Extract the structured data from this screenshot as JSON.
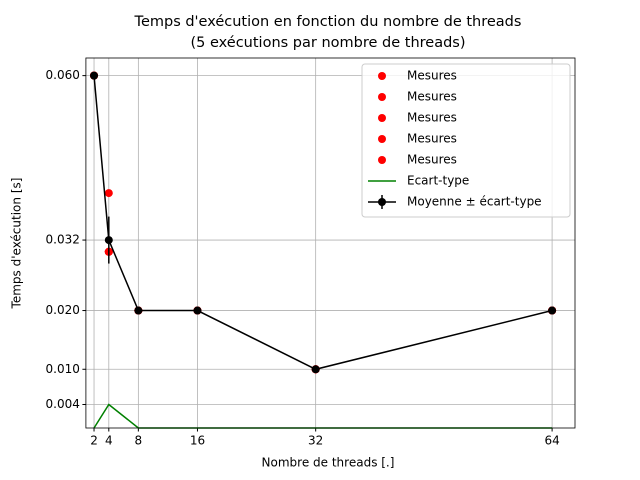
{
  "chart_data": {
    "type": "line",
    "title": "Temps d'exécution en fonction du nombre de threads",
    "subtitle": "(5 exécutions par nombre de threads)",
    "x_label": "Nombre de threads [.]",
    "y_label": "Temps d'exécution [s]",
    "x": [
      2,
      4,
      8,
      16,
      32,
      64
    ],
    "xlim": [
      0.9,
      67.1
    ],
    "ylim": [
      0,
      0.063
    ],
    "xticks": [
      2,
      4,
      8,
      16,
      32,
      64
    ],
    "yticks": [
      {
        "value": 0.004,
        "label": "0.004"
      },
      {
        "value": 0.01,
        "label": "0.010"
      },
      {
        "value": 0.02,
        "label": "0.020"
      },
      {
        "value": 0.032,
        "label": "0.032"
      },
      {
        "value": 0.06,
        "label": "0.060"
      }
    ],
    "grid": true,
    "legend": "upper right",
    "series": [
      {
        "name": "Mesures",
        "type": "scatter",
        "color": "#ff0000",
        "values": [
          0.06,
          0.04,
          0.02,
          0.02,
          0.01,
          0.02
        ]
      },
      {
        "name": "Mesures",
        "type": "scatter",
        "color": "#ff0000",
        "values": [
          0.06,
          0.03,
          0.02,
          0.02,
          0.01,
          0.02
        ]
      },
      {
        "name": "Mesures",
        "type": "scatter",
        "color": "#ff0000",
        "values": [
          0.06,
          0.03,
          0.02,
          0.02,
          0.01,
          0.02
        ]
      },
      {
        "name": "Mesures",
        "type": "scatter",
        "color": "#ff0000",
        "values": [
          0.06,
          0.03,
          0.02,
          0.02,
          0.01,
          0.02
        ]
      },
      {
        "name": "Mesures",
        "type": "scatter",
        "color": "#ff0000",
        "values": [
          0.06,
          0.03,
          0.02,
          0.02,
          0.01,
          0.02
        ]
      },
      {
        "name": "Ecart-type",
        "type": "line",
        "color": "#008000",
        "values": [
          0,
          0.004,
          0,
          0,
          0,
          0
        ]
      },
      {
        "name": "Moyenne ± écart-type",
        "type": "errorbar",
        "color": "#000000",
        "values": [
          0.06,
          0.032,
          0.02,
          0.02,
          0.01,
          0.02
        ],
        "errors": [
          0,
          0.004,
          0,
          0,
          0,
          0
        ]
      }
    ]
  }
}
